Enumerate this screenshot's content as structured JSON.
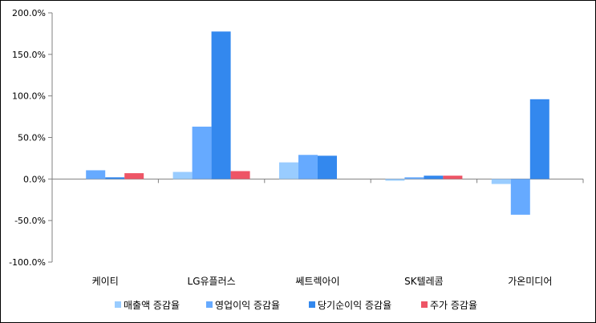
{
  "chart_data": {
    "type": "bar",
    "categories": [
      "케이티",
      "LG유플러스",
      "쎄트렉아이",
      "SK텔레콤",
      "가온미디어"
    ],
    "series": [
      {
        "name": "매출액 증감율",
        "color": "#99CCFF",
        "values": [
          0.0,
          8.5,
          20.0,
          -2.0,
          -6.0
        ]
      },
      {
        "name": "영업이익 증감율",
        "color": "#66AAFF",
        "values": [
          10.5,
          63.0,
          29.0,
          2.0,
          -43.0
        ]
      },
      {
        "name": "당기순이익 증감율",
        "color": "#3388EE",
        "values": [
          2.0,
          177.5,
          28.0,
          4.0,
          96.0
        ]
      },
      {
        "name": "주가 증감율",
        "color": "#EE5566",
        "values": [
          7.0,
          9.5,
          0.0,
          4.0,
          0.0
        ]
      }
    ],
    "yticks": [
      "-100.0%",
      "-50.0%",
      "0.0%",
      "50.0%",
      "100.0%",
      "150.0%",
      "200.0%"
    ],
    "ytick_values": [
      -100,
      -50,
      0,
      50,
      100,
      150,
      200
    ],
    "ylim": [
      -100,
      200
    ],
    "legend_position": "bottom",
    "grid": false
  }
}
